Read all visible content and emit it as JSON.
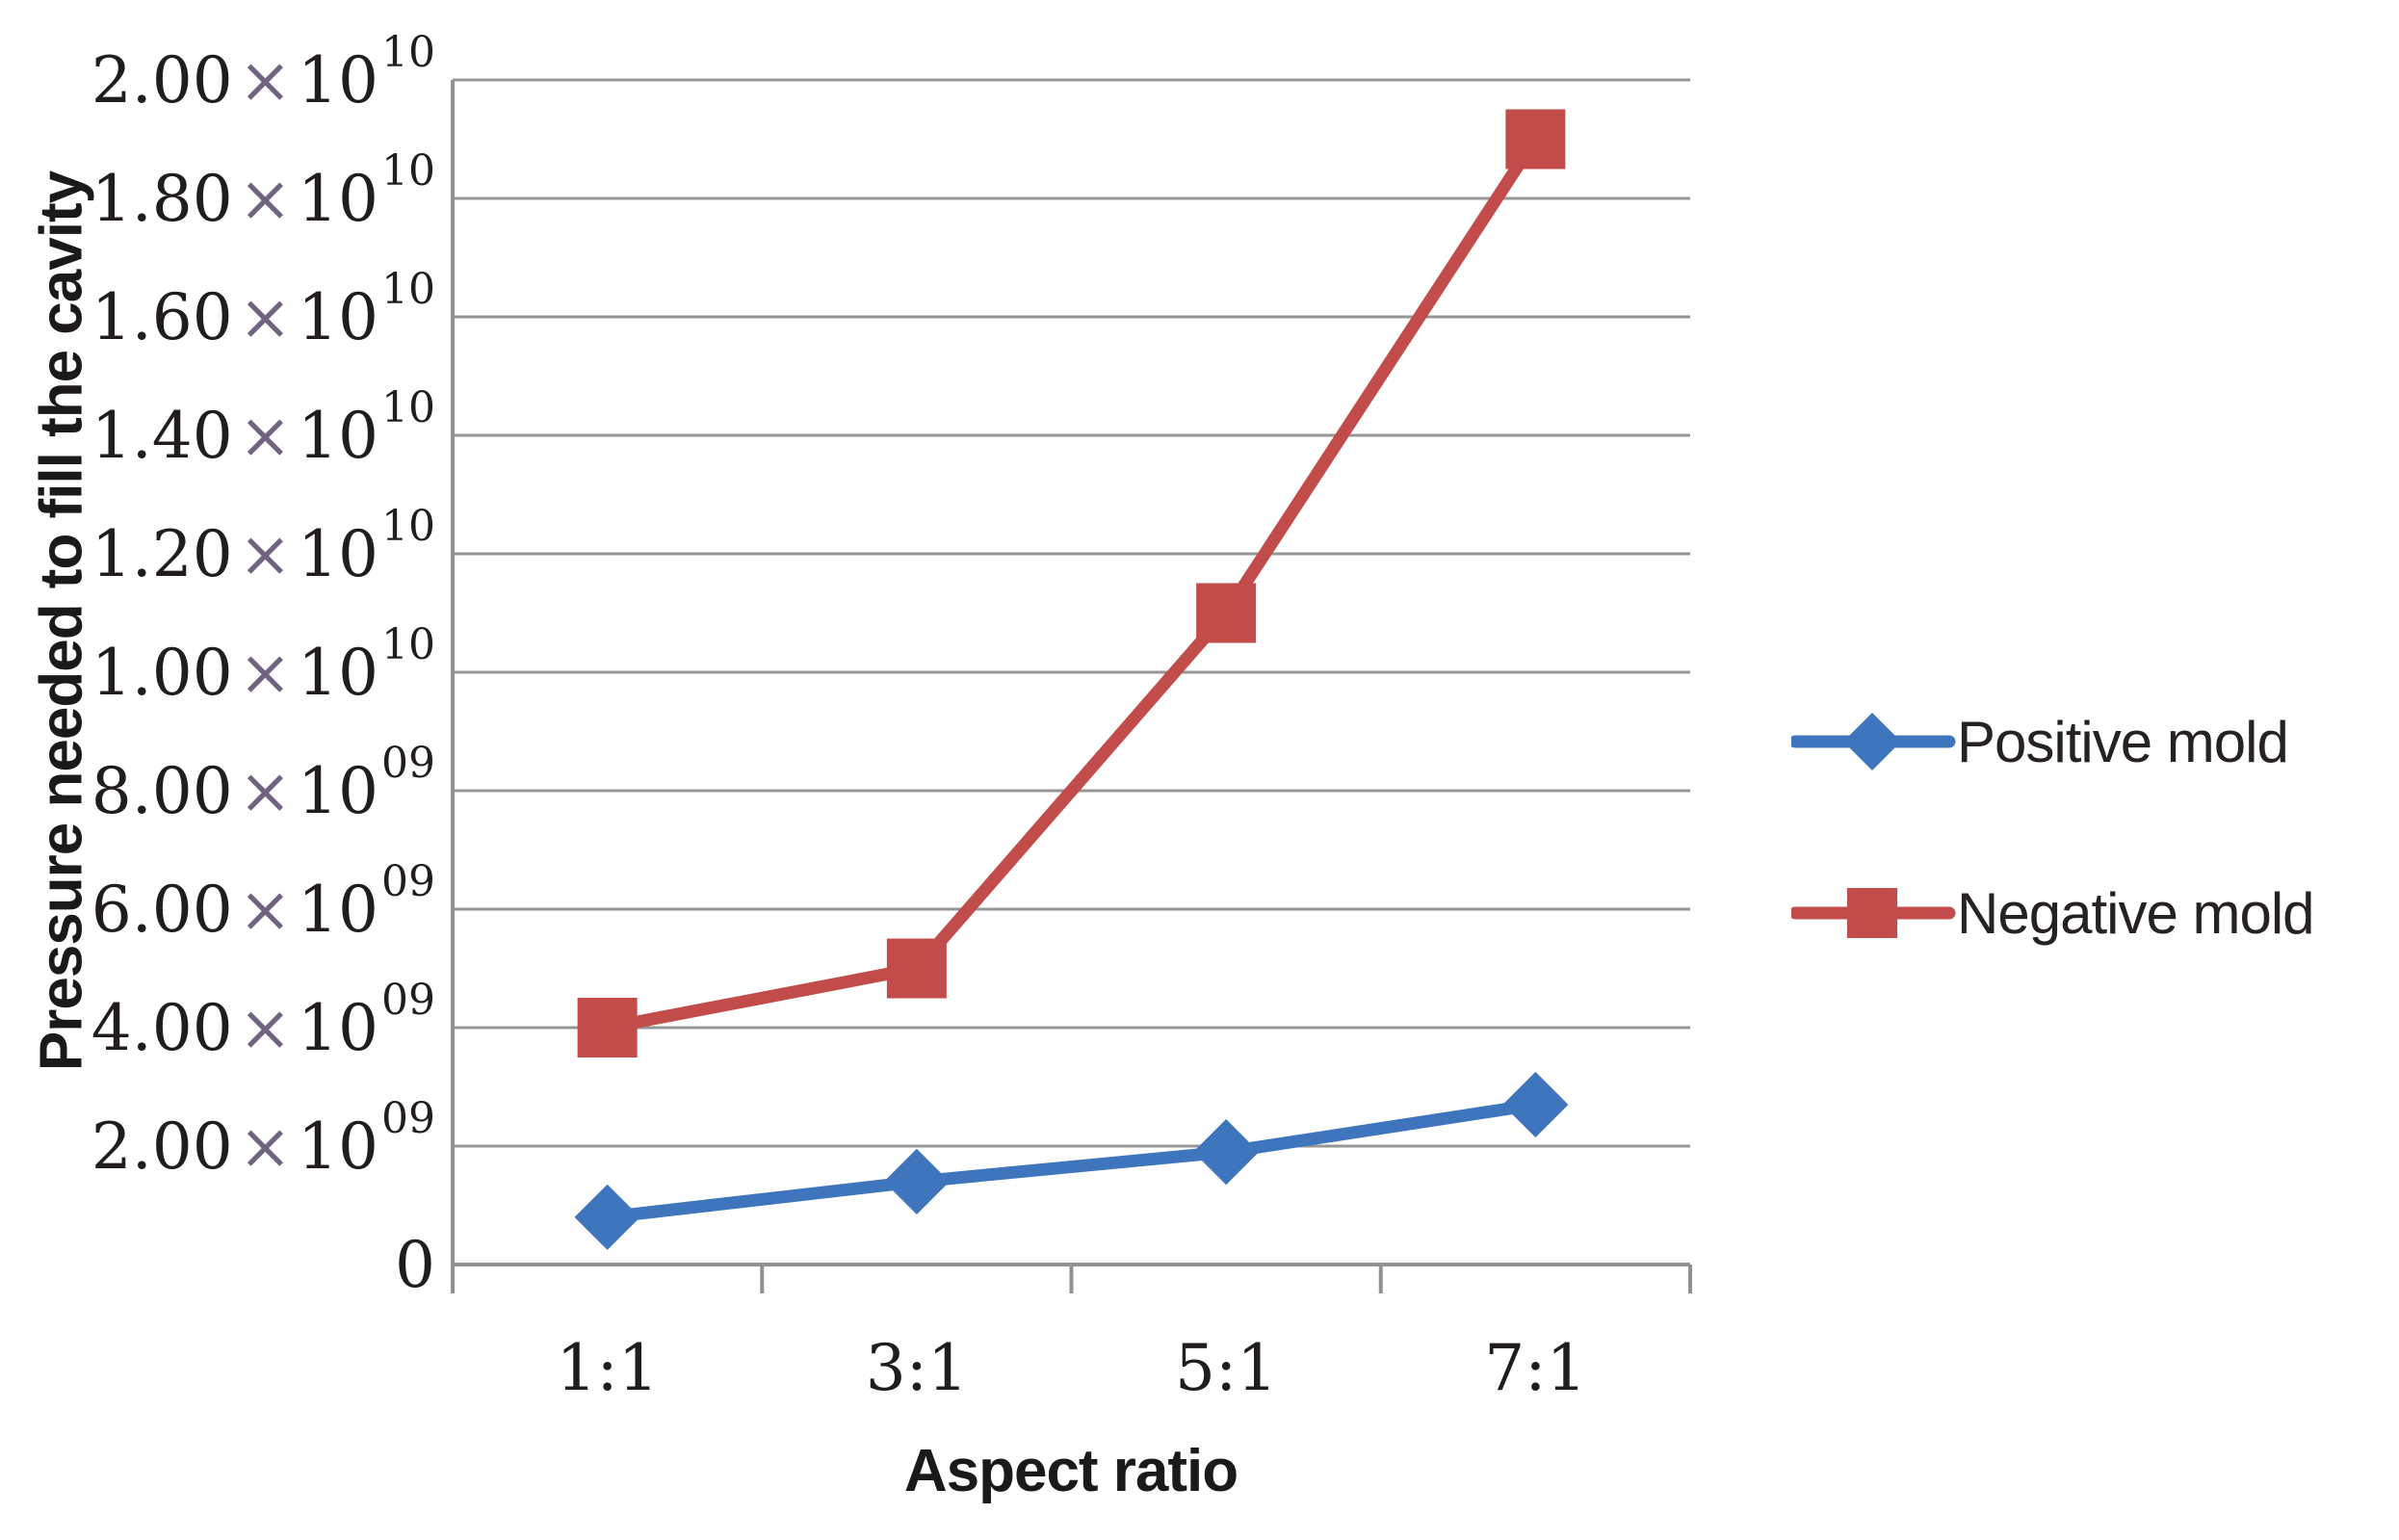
{
  "chart_data": {
    "type": "line",
    "title": "",
    "xlabel": "Aspect ratio",
    "ylabel": "Pressure needed to fill the cavity",
    "categories": [
      "1:1",
      "3:1",
      "5:1",
      "7:1"
    ],
    "series": [
      {
        "name": "Positive mold",
        "color": "#3e75bc",
        "marker": "diamond",
        "values": [
          800000000.0,
          1400000000.0,
          1900000000.0,
          2700000000.0
        ]
      },
      {
        "name": "Negative mold",
        "color": "#c14c49",
        "marker": "square",
        "values": [
          4000000000.0,
          5000000000.0,
          11000000000.0,
          19000000000.0
        ]
      }
    ],
    "ylim": [
      0,
      20000000000.0
    ],
    "y_ticks": [
      {
        "coef": "0",
        "exp": ""
      },
      {
        "coef": "2.00",
        "exp": "09"
      },
      {
        "coef": "4.00",
        "exp": "09"
      },
      {
        "coef": "6.00",
        "exp": "09"
      },
      {
        "coef": "8.00",
        "exp": "09"
      },
      {
        "coef": "1.00",
        "exp": "10"
      },
      {
        "coef": "1.20",
        "exp": "10"
      },
      {
        "coef": "1.40",
        "exp": "10"
      },
      {
        "coef": "1.60",
        "exp": "10"
      },
      {
        "coef": "1.80",
        "exp": "10"
      },
      {
        "coef": "2.00",
        "exp": "10"
      }
    ],
    "grid": true,
    "legend_position": "right"
  },
  "colors": {
    "gridline": "#969696",
    "axis": "#919191",
    "tick_text": "#211d1e",
    "times_sign": "#6f6380",
    "positive_mold": "#3e75bc",
    "negative_mold": "#c14c49"
  }
}
